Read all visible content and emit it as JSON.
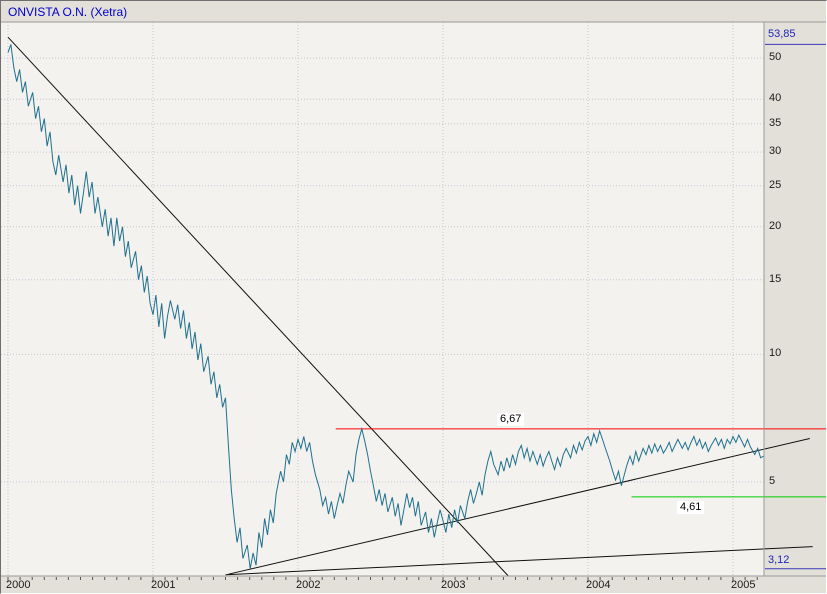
{
  "title": "ONVISTA O.N. (Xetra)",
  "colors": {
    "title_text": "#0000cc",
    "price_line": "#20708e",
    "trend_line": "#111111",
    "resistance": "#ff0000",
    "support": "#00cc00",
    "extreme_text": "#2323bb",
    "extreme_marker": "#3a3ab8",
    "grid": "#c6c6d6",
    "plot_bg": "#f3f2ee",
    "chrome_bg": "#e3e0d9",
    "border": "#9a9a9a",
    "tick": "#555555",
    "axis_text": "#1a1a1a"
  },
  "chart_data": {
    "type": "line",
    "title": "ONVISTA O.N. (Xetra)",
    "xlabel": "",
    "ylabel": "",
    "legend": "none",
    "grid": true,
    "y_scale": "log",
    "xlim": [
      2000,
      2005.66
    ],
    "ylim": [
      3.0,
      60.5
    ],
    "y_ticks": [
      50,
      40,
      35,
      30,
      25,
      20,
      15,
      10,
      5
    ],
    "x_ticks": [
      2000,
      2001,
      2002,
      2003,
      2004,
      2005
    ],
    "high": {
      "value": 53.85,
      "label": "53,85"
    },
    "low": {
      "value": 3.12,
      "label": "3,12"
    },
    "annotations": {
      "resistance": {
        "value": 6.67,
        "label": "6,67",
        "start": 2002.26,
        "color": "#ff0000"
      },
      "support": {
        "value": 4.61,
        "label": "4,61",
        "start": 2004.3,
        "color": "#00cc00"
      }
    },
    "trendlines": [
      {
        "name": "primary-downtrend",
        "from": [
          2000.0,
          56.0
        ],
        "to": [
          2003.45,
          3.0
        ]
      },
      {
        "name": "rising-support",
        "from": [
          2001.52,
          3.03
        ],
        "to": [
          2005.53,
          6.33
        ]
      },
      {
        "name": "base-line",
        "from": [
          2001.5,
          3.02
        ],
        "to": [
          2005.55,
          3.52
        ]
      }
    ],
    "series": [
      {
        "name": "ONVISTA O.N. price",
        "color": "#20708e",
        "points": [
          [
            2000.0,
            51.5
          ],
          [
            2000.02,
            53.85
          ],
          [
            2000.04,
            47.5
          ],
          [
            2000.06,
            44.0
          ],
          [
            2000.08,
            47.0
          ],
          [
            2000.1,
            41.5
          ],
          [
            2000.12,
            44.0
          ],
          [
            2000.14,
            38.5
          ],
          [
            2000.17,
            41.5
          ],
          [
            2000.19,
            36.0
          ],
          [
            2000.21,
            38.5
          ],
          [
            2000.23,
            33.5
          ],
          [
            2000.25,
            36.0
          ],
          [
            2000.27,
            31.0
          ],
          [
            2000.29,
            33.5
          ],
          [
            2000.31,
            28.5
          ],
          [
            2000.33,
            26.5
          ],
          [
            2000.35,
            29.5
          ],
          [
            2000.38,
            25.5
          ],
          [
            2000.4,
            28.0
          ],
          [
            2000.42,
            24.0
          ],
          [
            2000.44,
            26.5
          ],
          [
            2000.46,
            22.5
          ],
          [
            2000.48,
            25.0
          ],
          [
            2000.5,
            21.5
          ],
          [
            2000.52,
            24.0
          ],
          [
            2000.54,
            27.0
          ],
          [
            2000.56,
            23.5
          ],
          [
            2000.58,
            25.5
          ],
          [
            2000.6,
            21.5
          ],
          [
            2000.62,
            23.5
          ],
          [
            2000.65,
            20.0
          ],
          [
            2000.67,
            22.0
          ],
          [
            2000.69,
            19.0
          ],
          [
            2000.71,
            21.0
          ],
          [
            2000.73,
            18.0
          ],
          [
            2000.75,
            21.0
          ],
          [
            2000.77,
            18.5
          ],
          [
            2000.79,
            20.0
          ],
          [
            2000.81,
            17.0
          ],
          [
            2000.83,
            18.5
          ],
          [
            2000.85,
            16.0
          ],
          [
            2000.88,
            17.5
          ],
          [
            2000.9,
            15.0
          ],
          [
            2000.92,
            16.2
          ],
          [
            2000.94,
            14.0
          ],
          [
            2000.96,
            15.3
          ],
          [
            2000.98,
            13.2
          ],
          [
            2001.0,
            12.4
          ],
          [
            2001.02,
            13.8
          ],
          [
            2001.04,
            11.6
          ],
          [
            2001.06,
            13.2
          ],
          [
            2001.08,
            10.9
          ],
          [
            2001.1,
            12.3
          ],
          [
            2001.12,
            13.4
          ],
          [
            2001.15,
            12.1
          ],
          [
            2001.17,
            13.1
          ],
          [
            2001.19,
            11.5
          ],
          [
            2001.21,
            12.7
          ],
          [
            2001.23,
            10.9
          ],
          [
            2001.25,
            11.9
          ],
          [
            2001.27,
            10.3
          ],
          [
            2001.29,
            11.3
          ],
          [
            2001.31,
            9.7
          ],
          [
            2001.33,
            10.6
          ],
          [
            2001.35,
            9.1
          ],
          [
            2001.38,
            9.9
          ],
          [
            2001.4,
            8.5
          ],
          [
            2001.42,
            9.1
          ],
          [
            2001.44,
            7.9
          ],
          [
            2001.46,
            8.5
          ],
          [
            2001.48,
            7.5
          ],
          [
            2001.5,
            7.9
          ],
          [
            2001.52,
            6.1
          ],
          [
            2001.54,
            4.8
          ],
          [
            2001.56,
            4.1
          ],
          [
            2001.58,
            3.6
          ],
          [
            2001.6,
            3.9
          ],
          [
            2001.62,
            3.3
          ],
          [
            2001.65,
            3.55
          ],
          [
            2001.67,
            3.12
          ],
          [
            2001.69,
            3.4
          ],
          [
            2001.71,
            3.18
          ],
          [
            2001.73,
            3.8
          ],
          [
            2001.75,
            3.5
          ],
          [
            2001.77,
            4.1
          ],
          [
            2001.79,
            3.75
          ],
          [
            2001.81,
            4.3
          ],
          [
            2001.83,
            4.0
          ],
          [
            2001.85,
            4.7
          ],
          [
            2001.88,
            5.3
          ],
          [
            2001.9,
            5.0
          ],
          [
            2001.92,
            5.8
          ],
          [
            2001.94,
            5.5
          ],
          [
            2001.96,
            6.2
          ],
          [
            2001.98,
            5.9
          ],
          [
            2002.0,
            6.3
          ],
          [
            2002.02,
            6.0
          ],
          [
            2002.04,
            6.4
          ],
          [
            2002.06,
            5.9
          ],
          [
            2002.08,
            6.2
          ],
          [
            2002.1,
            5.6
          ],
          [
            2002.12,
            5.2
          ],
          [
            2002.15,
            4.8
          ],
          [
            2002.17,
            4.4
          ],
          [
            2002.19,
            4.6
          ],
          [
            2002.21,
            4.2
          ],
          [
            2002.23,
            4.5
          ],
          [
            2002.25,
            4.1
          ],
          [
            2002.27,
            4.4
          ],
          [
            2002.29,
            4.7
          ],
          [
            2002.31,
            4.45
          ],
          [
            2002.33,
            4.9
          ],
          [
            2002.35,
            5.3
          ],
          [
            2002.38,
            5.0
          ],
          [
            2002.4,
            5.8
          ],
          [
            2002.42,
            6.3
          ],
          [
            2002.44,
            6.67
          ],
          [
            2002.46,
            6.25
          ],
          [
            2002.48,
            5.8
          ],
          [
            2002.5,
            5.3
          ],
          [
            2002.52,
            4.9
          ],
          [
            2002.54,
            4.5
          ],
          [
            2002.56,
            4.8
          ],
          [
            2002.58,
            4.4
          ],
          [
            2002.6,
            4.7
          ],
          [
            2002.62,
            4.25
          ],
          [
            2002.65,
            4.6
          ],
          [
            2002.67,
            4.15
          ],
          [
            2002.69,
            4.45
          ],
          [
            2002.71,
            3.95
          ],
          [
            2002.73,
            4.3
          ],
          [
            2002.75,
            4.7
          ],
          [
            2002.77,
            4.35
          ],
          [
            2002.79,
            4.6
          ],
          [
            2002.81,
            4.15
          ],
          [
            2002.83,
            4.5
          ],
          [
            2002.85,
            3.95
          ],
          [
            2002.88,
            4.25
          ],
          [
            2002.9,
            3.8
          ],
          [
            2002.92,
            4.1
          ],
          [
            2002.94,
            3.7
          ],
          [
            2002.96,
            4.0
          ],
          [
            2002.98,
            4.3
          ],
          [
            2003.0,
            4.05
          ],
          [
            2003.02,
            3.8
          ],
          [
            2003.04,
            4.2
          ],
          [
            2003.06,
            3.9
          ],
          [
            2003.08,
            4.3
          ],
          [
            2003.1,
            4.0
          ],
          [
            2003.12,
            4.4
          ],
          [
            2003.15,
            4.1
          ],
          [
            2003.17,
            4.5
          ],
          [
            2003.19,
            4.8
          ],
          [
            2003.21,
            4.45
          ],
          [
            2003.23,
            4.7
          ],
          [
            2003.25,
            5.0
          ],
          [
            2003.27,
            4.65
          ],
          [
            2003.29,
            5.2
          ],
          [
            2003.31,
            5.6
          ],
          [
            2003.33,
            5.9
          ],
          [
            2003.35,
            5.5
          ],
          [
            2003.38,
            5.2
          ],
          [
            2003.4,
            5.6
          ],
          [
            2003.42,
            5.3
          ],
          [
            2003.44,
            5.7
          ],
          [
            2003.46,
            5.4
          ],
          [
            2003.48,
            5.8
          ],
          [
            2003.5,
            5.5
          ],
          [
            2003.52,
            5.9
          ],
          [
            2003.54,
            6.1
          ],
          [
            2003.56,
            5.7
          ],
          [
            2003.58,
            6.0
          ],
          [
            2003.6,
            5.6
          ],
          [
            2003.62,
            5.9
          ],
          [
            2003.65,
            5.5
          ],
          [
            2003.67,
            5.8
          ],
          [
            2003.69,
            5.45
          ],
          [
            2003.71,
            5.7
          ],
          [
            2003.73,
            5.9
          ],
          [
            2003.75,
            5.6
          ],
          [
            2003.77,
            5.35
          ],
          [
            2003.79,
            5.7
          ],
          [
            2003.81,
            5.45
          ],
          [
            2003.83,
            5.8
          ],
          [
            2003.85,
            6.0
          ],
          [
            2003.88,
            5.7
          ],
          [
            2003.9,
            6.1
          ],
          [
            2003.92,
            5.85
          ],
          [
            2003.94,
            6.2
          ],
          [
            2003.96,
            5.95
          ],
          [
            2003.98,
            6.25
          ],
          [
            2004.0,
            6.4
          ],
          [
            2004.02,
            6.1
          ],
          [
            2004.04,
            6.5
          ],
          [
            2004.06,
            6.2
          ],
          [
            2004.08,
            6.6
          ],
          [
            2004.1,
            6.3
          ],
          [
            2004.12,
            6.0
          ],
          [
            2004.15,
            5.6
          ],
          [
            2004.17,
            5.3
          ],
          [
            2004.19,
            5.05
          ],
          [
            2004.21,
            5.3
          ],
          [
            2004.23,
            4.9
          ],
          [
            2004.25,
            5.2
          ],
          [
            2004.27,
            5.5
          ],
          [
            2004.29,
            5.75
          ],
          [
            2004.31,
            5.5
          ],
          [
            2004.33,
            5.9
          ],
          [
            2004.35,
            5.6
          ],
          [
            2004.38,
            6.0
          ],
          [
            2004.4,
            5.8
          ],
          [
            2004.42,
            6.1
          ],
          [
            2004.44,
            5.85
          ],
          [
            2004.46,
            6.15
          ],
          [
            2004.48,
            5.9
          ],
          [
            2004.5,
            6.1
          ],
          [
            2004.52,
            5.85
          ],
          [
            2004.54,
            6.0
          ],
          [
            2004.56,
            6.2
          ],
          [
            2004.58,
            5.9
          ],
          [
            2004.6,
            6.1
          ],
          [
            2004.62,
            6.3
          ],
          [
            2004.65,
            6.0
          ],
          [
            2004.67,
            6.2
          ],
          [
            2004.69,
            5.95
          ],
          [
            2004.71,
            6.2
          ],
          [
            2004.73,
            6.4
          ],
          [
            2004.75,
            6.1
          ],
          [
            2004.77,
            6.3
          ],
          [
            2004.79,
            6.0
          ],
          [
            2004.81,
            6.2
          ],
          [
            2004.83,
            5.9
          ],
          [
            2004.85,
            6.1
          ],
          [
            2004.88,
            6.35
          ],
          [
            2004.9,
            6.1
          ],
          [
            2004.92,
            6.3
          ],
          [
            2004.94,
            6.0
          ],
          [
            2004.96,
            6.3
          ],
          [
            2004.98,
            6.15
          ],
          [
            2005.0,
            6.4
          ],
          [
            2005.02,
            6.2
          ],
          [
            2005.04,
            6.45
          ],
          [
            2005.06,
            6.25
          ],
          [
            2005.08,
            6.05
          ],
          [
            2005.1,
            6.3
          ],
          [
            2005.12,
            6.05
          ],
          [
            2005.15,
            5.8
          ],
          [
            2005.17,
            6.0
          ],
          [
            2005.19,
            5.7
          ],
          [
            2005.21,
            5.75
          ]
        ]
      }
    ]
  }
}
